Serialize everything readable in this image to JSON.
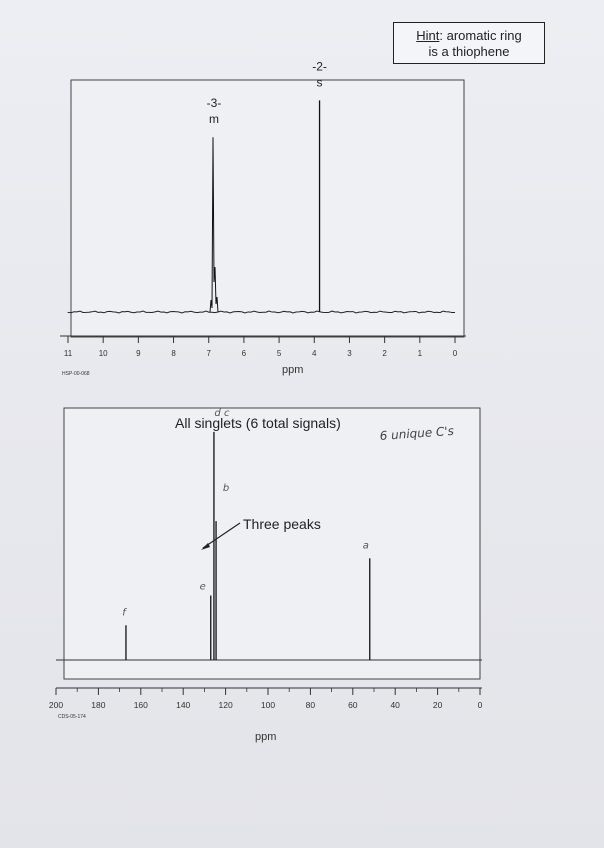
{
  "hint": {
    "prefix": "Hint",
    "rest": ": aromatic ring",
    "line2": "is a thiophene"
  },
  "chart_data": [
    {
      "type": "line",
      "spectrum": "1H NMR",
      "xlabel": "ppm",
      "code": "HSP-00-068",
      "xlim": [
        11,
        0
      ],
      "x_ticks": [
        "11",
        "10",
        "9",
        "8",
        "7",
        "6",
        "5",
        "4",
        "3",
        "2",
        "1",
        "0"
      ],
      "peaks": [
        {
          "shift": 6.85,
          "height": 0.76,
          "label": "-3-",
          "mult": "m"
        },
        {
          "shift": 3.85,
          "height": 0.92,
          "label": "-2-",
          "mult": "s"
        }
      ]
    },
    {
      "type": "bar",
      "spectrum": "13C NMR",
      "xlabel": "ppm",
      "code": "CDS-05-174",
      "xlim": [
        200,
        0
      ],
      "x_ticks": [
        "200",
        "180",
        "160",
        "140",
        "120",
        "100",
        "80",
        "60",
        "40",
        "20",
        "0"
      ],
      "annotation": "All singlets (6 total signals)",
      "peaks": [
        {
          "shift": 167,
          "height": 0.14,
          "label": "f"
        },
        {
          "shift": 127,
          "height": 0.26,
          "label": "e"
        },
        {
          "shift": 125.5,
          "height": 0.92,
          "label": "d c"
        },
        {
          "shift": 124.5,
          "height": 0.56,
          "label": "b"
        },
        {
          "shift": 52,
          "height": 0.41,
          "label": "a"
        }
      ],
      "arrow_text": "Three peaks",
      "handwritten_note": "6 unique C's"
    }
  ]
}
